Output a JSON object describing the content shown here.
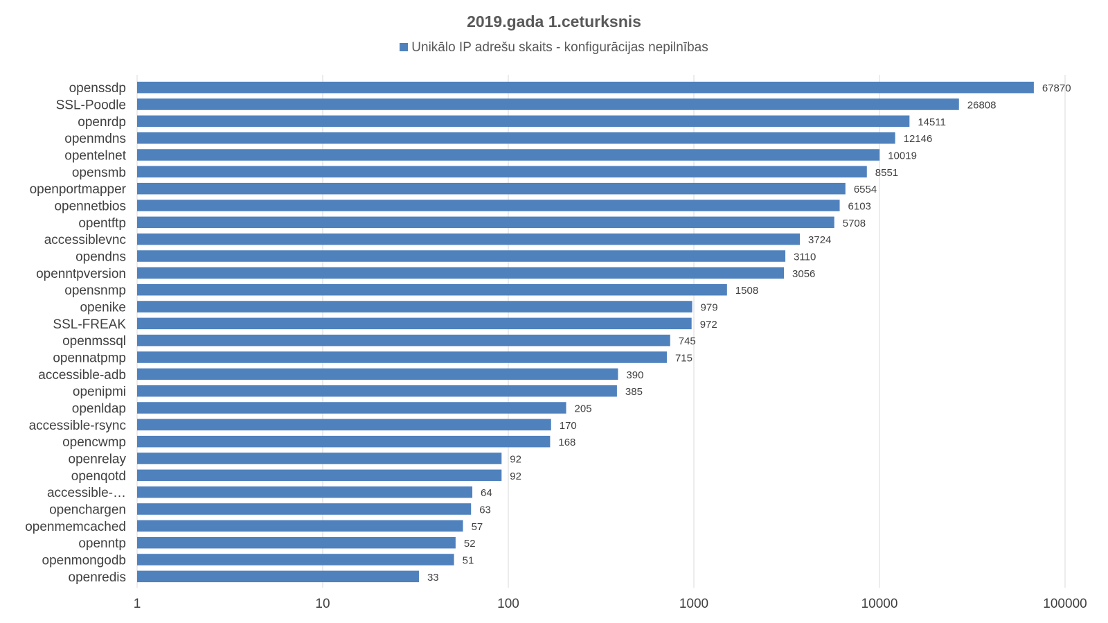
{
  "chart_data": {
    "type": "bar",
    "orientation": "horizontal",
    "title": "2019.gada 1.ceturksnis",
    "x_scale": "log",
    "xlim": [
      1,
      100000
    ],
    "x_ticks": [
      "1",
      "10",
      "100",
      "1000",
      "10000",
      "100000"
    ],
    "grid": true,
    "legend_position": "top",
    "bar_color": "#4f81bd",
    "series": [
      {
        "name": "Unikālo IP adrešu skaits  -  konfigurācijas nepilnības"
      }
    ],
    "categories": [
      "openssdp",
      "SSL-Poodle",
      "openrdp",
      "openmdns",
      "opentelnet",
      "opensmb",
      "openportmapper",
      "opennetbios",
      "opentftp",
      "accessiblevnc",
      "opendns",
      "openntpversion",
      "opensnmp",
      "openike",
      "SSL-FREAK",
      "openmssql",
      "opennatpmp",
      "accessible-adb",
      "openipmi",
      "openldap",
      "accessible-rsync",
      "opencwmp",
      "openrelay",
      "openqotd",
      "accessible-…",
      "openchargen",
      "openmemcached",
      "openntp",
      "openmongodb",
      "openredis"
    ],
    "values": [
      67870,
      26808,
      14511,
      12146,
      10019,
      8551,
      6554,
      6103,
      5708,
      3724,
      3110,
      3056,
      1508,
      979,
      972,
      745,
      715,
      390,
      385,
      205,
      170,
      168,
      92,
      92,
      64,
      63,
      57,
      52,
      51,
      33
    ]
  }
}
